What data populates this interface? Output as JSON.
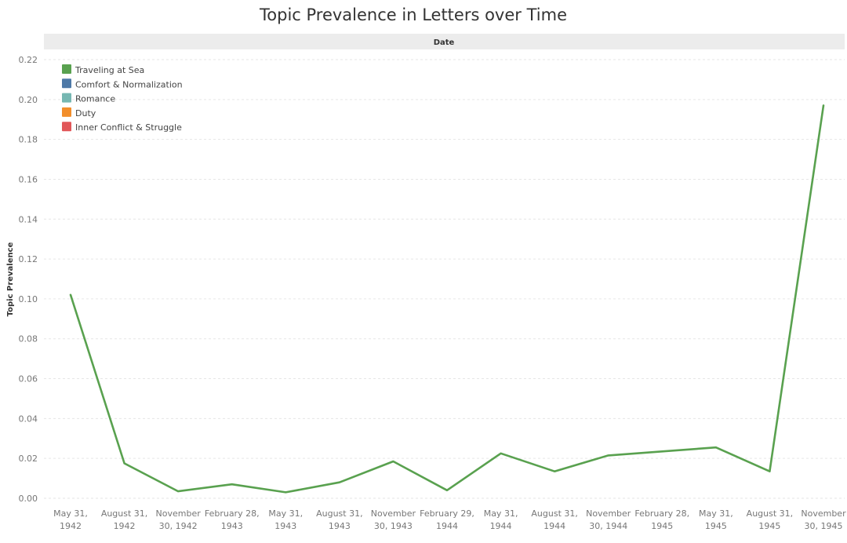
{
  "chart_data": {
    "type": "line",
    "title": "Topic Prevalence in Letters over Time",
    "header_label": "Date",
    "xlabel": "",
    "ylabel": "Topic Prevalence",
    "ylim": [
      0,
      0.22
    ],
    "yticks": [
      0.0,
      0.02,
      0.04,
      0.06,
      0.08,
      0.1,
      0.12,
      0.14,
      0.16,
      0.18,
      0.2,
      0.22
    ],
    "grid": true,
    "legend_position": "top-left",
    "categories": [
      [
        "May 31,",
        "1942"
      ],
      [
        "August 31,",
        "1942"
      ],
      [
        "November",
        "30, 1942"
      ],
      [
        "February 28,",
        "1943"
      ],
      [
        "May 31,",
        "1943"
      ],
      [
        "August 31,",
        "1943"
      ],
      [
        "November",
        "30, 1943"
      ],
      [
        "February 29,",
        "1944"
      ],
      [
        "May 31,",
        "1944"
      ],
      [
        "August 31,",
        "1944"
      ],
      [
        "November",
        "30, 1944"
      ],
      [
        "February 28,",
        "1945"
      ],
      [
        "May 31,",
        "1945"
      ],
      [
        "August 31,",
        "1945"
      ],
      [
        "November",
        "30, 1945"
      ]
    ],
    "legend": [
      {
        "name": "Traveling at Sea",
        "color": "#59a14f"
      },
      {
        "name": "Comfort & Normalization",
        "color": "#4e79a7"
      },
      {
        "name": "Romance",
        "color": "#76b7b2"
      },
      {
        "name": "Duty",
        "color": "#f28e2b"
      },
      {
        "name": "Inner Conflict & Struggle",
        "color": "#e15759"
      }
    ],
    "series": [
      {
        "name": "Traveling at Sea",
        "color": "#59a14f",
        "values": [
          0.102,
          0.0175,
          0.0035,
          0.007,
          0.003,
          0.008,
          0.0185,
          0.004,
          0.0225,
          0.0135,
          0.0215,
          0.0235,
          0.0255,
          0.0135,
          0.197
        ]
      }
    ]
  }
}
